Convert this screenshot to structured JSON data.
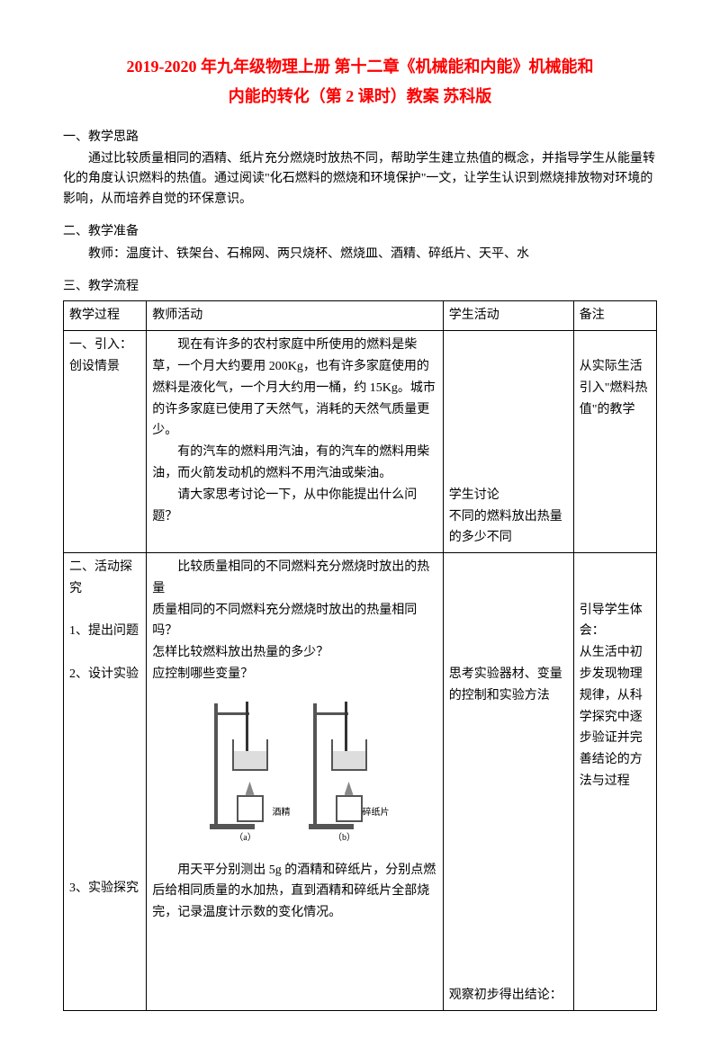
{
  "title_line1": "2019-2020 年九年级物理上册 第十二章《机械能和内能》机械能和",
  "title_line2": "内能的转化（第 2 课时）教案 苏科版",
  "section1": {
    "heading": "一、教学思路",
    "para1": "通过比较质量相同的酒精、纸片充分燃烧时放热不同，帮助学生建立热值的概念，并指导学生从能量转化的角度认识燃料的热值。通过阅读\"化石燃料的燃烧和环境保护\"一文，让学生认识到燃烧排放物对环境的影响，从而培养自觉的环保意识。"
  },
  "section2": {
    "heading": "二、教学准备",
    "para1": "教师：温度计、铁架台、石棉网、两只烧杯、燃烧皿、酒精、碎纸片、天平、水"
  },
  "section3": {
    "heading": "三、教学流程"
  },
  "table": {
    "header": {
      "c1": "教学过程",
      "c2": "教师活动",
      "c3": "学生活动",
      "c4": "备注"
    },
    "row1": {
      "c1": "一、引入：创设情景",
      "c2_p1": "现在有许多的农村家庭中所使用的燃料是柴草，一个月大约要用 200Kg，也有许多家庭使用的燃料是液化气，一个月大约用一桶，约 15Kg。城市的许多家庭已使用了天然气，消耗的天然气质量更少。",
      "c2_p2": "有的汽车的燃料用汽油，有的汽车的燃料用柴油，而火箭发动机的燃料不用汽油或柴油。",
      "c2_p3": "请大家思考讨论一下，从中你能提出什么问题？",
      "c3": "学生讨论\n不同的燃料放出热量的多少不同",
      "c4": "从实际生活引入\"燃料热值\"的教学"
    },
    "row2": {
      "c1_l1": "二、活动探究",
      "c1_l2": "1、提出问题",
      "c1_l3": "2、设计实验",
      "c1_l4": "3、实验探究",
      "c2_p1": "比较质量相同的不同燃料充分燃烧时放出的热量",
      "c2_p2": "质量相同的不同燃料充分燃烧时放出的热量相同吗？",
      "c2_p3": "怎样比较燃料放出热量的多少？",
      "c2_p4": "应控制哪些变量？",
      "c2_p5": "用天平分别测出 5g 的酒精和碎纸片，分别点燃后给相同质量的水加热，直到酒精和碎纸片全部烧完，记录温度计示数的变化情况。",
      "c3_l1": "思考实验器材、变量的控制和实验方法",
      "c3_l2": "观察初步得出结论：",
      "c4": "引导学生体会：\n从生活中初步发现物理规律，从科学探究中逐步验证并完善结论的方法与过程",
      "img_label_a": "（a）",
      "img_label_b": "（b）",
      "img_sub_a": "酒精",
      "img_sub_b": "碎纸片"
    }
  }
}
